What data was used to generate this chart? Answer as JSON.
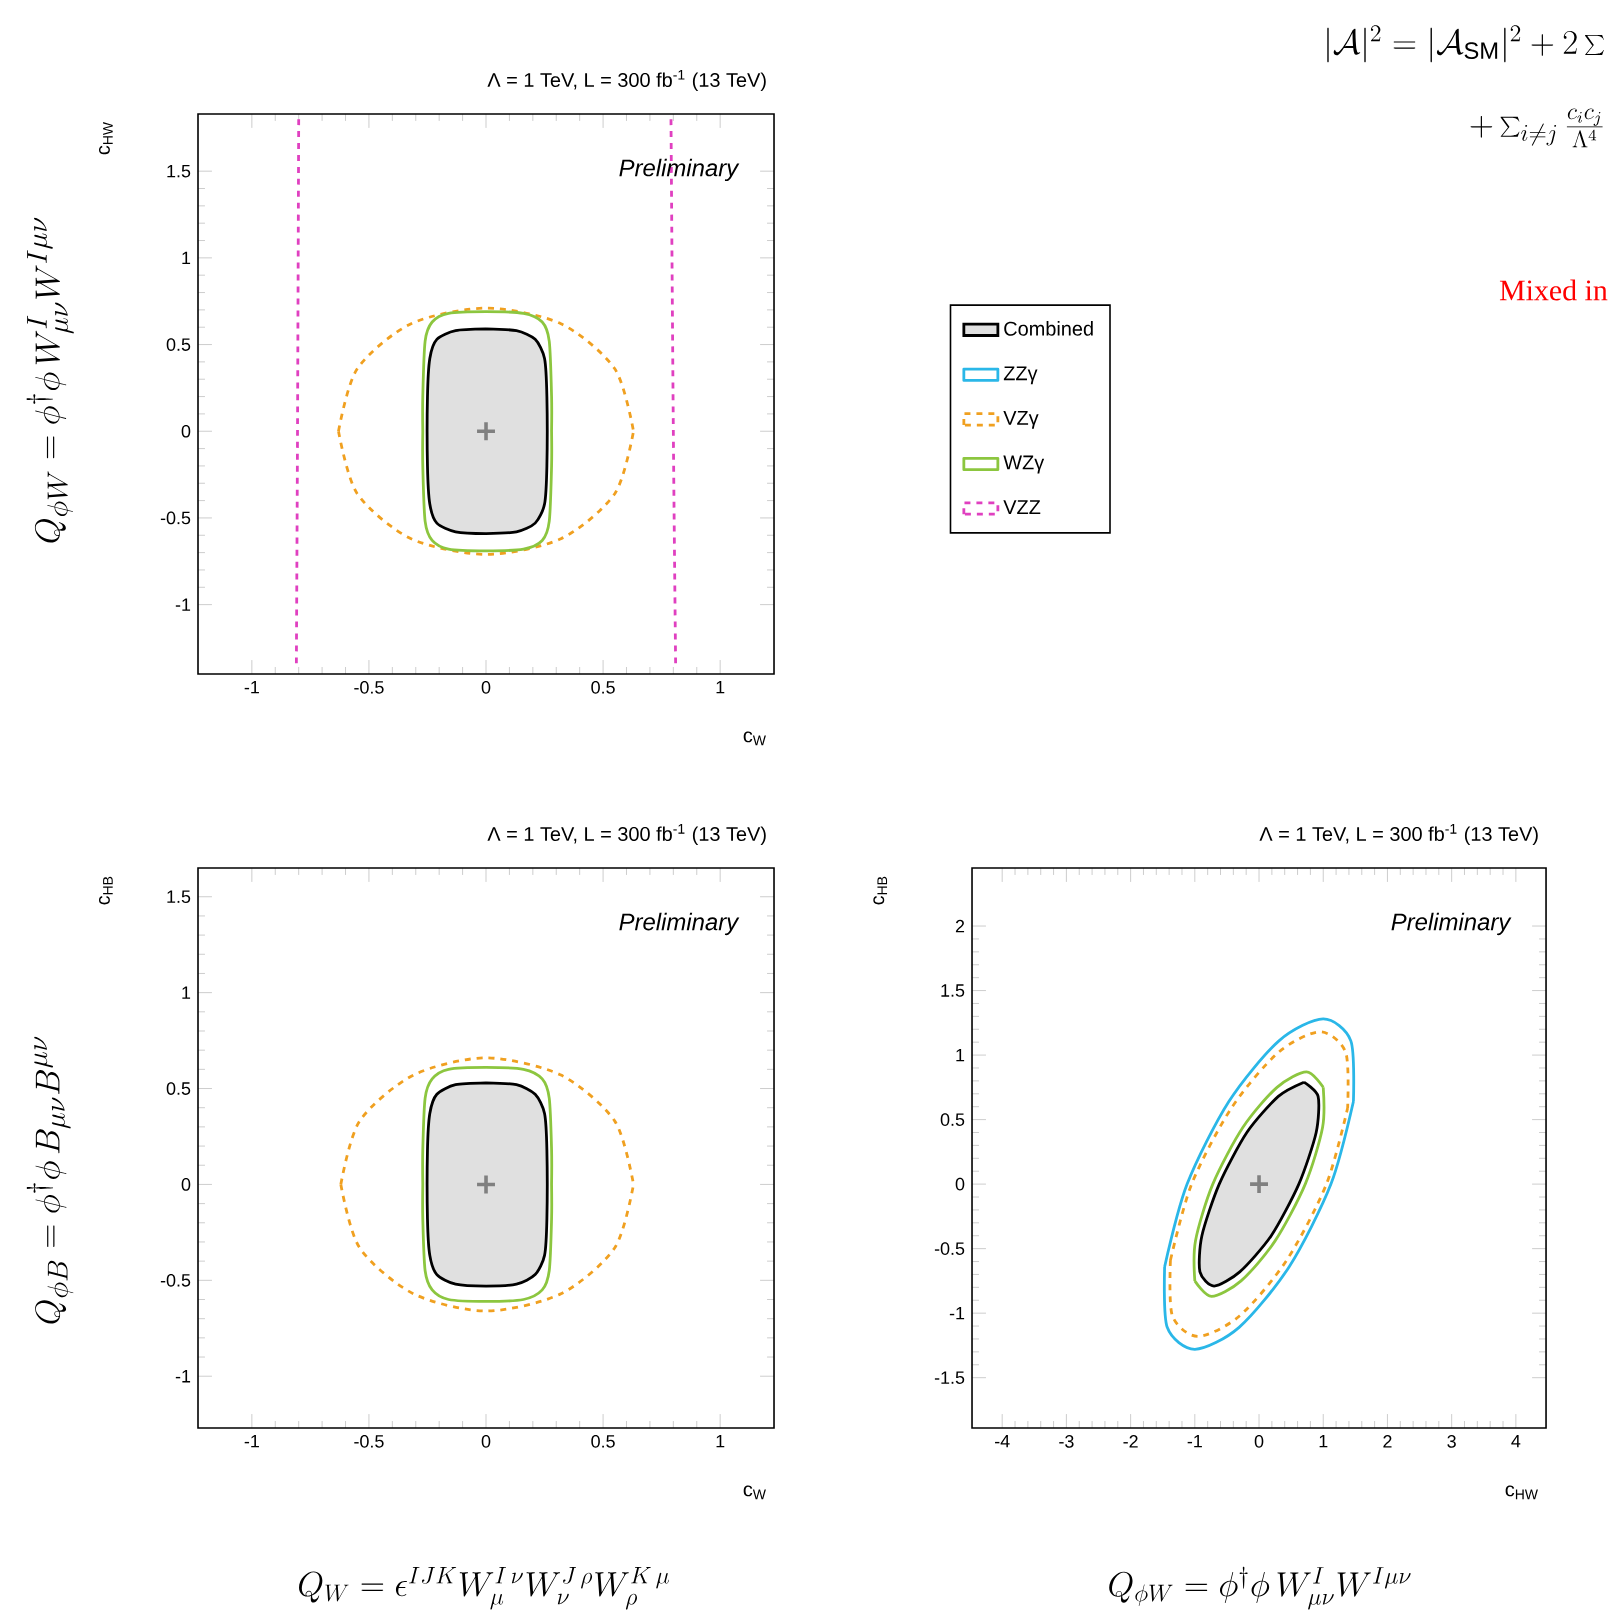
{
  "chart_data": [
    {
      "type": "line",
      "title": "Λ = 1 TeV,  L = 300 fb$^{-1}$  (13 TeV)",
      "xlabel": "c$_{W}$",
      "ylabel": "c$_{HW}$",
      "xlim": [
        -1.23,
        1.23
      ],
      "ylim": [
        -1.4,
        1.83
      ],
      "xticks": [
        -1,
        -0.5,
        0,
        0.5,
        1
      ],
      "yticks": [
        -1,
        -0.5,
        0,
        0.5,
        1,
        1.5
      ],
      "legend": "right",
      "annotations": [
        "Preliminary",
        "Q_{\\phi W} = \\phi^\\dagger \\phi\\, W^I_{\\mu\\nu} W^{I\\mu\\nu}",
        "|\\mathcal{A}|^2 = |\\mathcal{A}_{\\mathrm{SM}}|^2 + 2\\sum",
        "+ \\sum_{i\\neq j} \\frac{c_i c_j}{\\Lambda^4}",
        "Mixed in"
      ],
      "series": [
        {
          "name": "Combined",
          "type": "area",
          "color": "#000000",
          "x": [
            0,
            0.13,
            0.21,
            0.25,
            0.26,
            0.26,
            0.25,
            0.21,
            0.13,
            0,
            -0.13,
            -0.21,
            -0.24,
            -0.25,
            -0.25,
            -0.24,
            -0.21,
            -0.13,
            0
          ],
          "values": [
            0.59,
            0.58,
            0.53,
            0.42,
            0.2,
            -0.2,
            -0.42,
            -0.53,
            -0.58,
            -0.59,
            -0.58,
            -0.53,
            -0.42,
            -0.2,
            0.2,
            0.42,
            0.53,
            0.58,
            0.59
          ]
        },
        {
          "name": "ZZγ",
          "color": "#2ab7e8"
        },
        {
          "name": "VZγ",
          "color": "#f0a020",
          "line_style": "dashed",
          "x": [
            -0.63,
            -0.55,
            -0.32,
            0,
            0.32,
            0.55,
            0.63,
            0,
            -0.63,
            -0.55,
            -0.32,
            0,
            0.32,
            0.55,
            0.63
          ],
          "values": [
            0,
            0.36,
            0.62,
            0.71,
            0.62,
            0.36,
            0,
            null,
            0,
            -0.36,
            -0.62,
            -0.71,
            -0.62,
            -0.36,
            0
          ]
        },
        {
          "name": "WZγ",
          "color": "#8cc63f",
          "x": [
            -0.27,
            -0.27,
            -0.26,
            -0.23,
            -0.16,
            0,
            0.16,
            0.24,
            0.27,
            0.28,
            0.28,
            0,
            -0.27,
            -0.27,
            -0.26,
            -0.23,
            -0.16,
            0,
            0.16,
            0.24,
            0.27,
            0.28,
            0.28
          ],
          "values": [
            0,
            0.2,
            0.52,
            0.63,
            0.68,
            0.69,
            0.68,
            0.63,
            0.52,
            0.2,
            0,
            null,
            0,
            -0.2,
            -0.52,
            -0.63,
            -0.68,
            -0.69,
            -0.68,
            -0.63,
            -0.52,
            -0.2,
            0
          ]
        },
        {
          "name": "VZZ",
          "color": "#e040c0",
          "line_style": "dashed",
          "x": [
            -0.8,
            -0.805,
            -0.81,
            0,
            0.79,
            0.8,
            0.81
          ],
          "values": [
            1.8,
            0,
            -1.37,
            null,
            1.8,
            0,
            -1.37
          ]
        },
        {
          "type": "scatter",
          "marker": "cross",
          "color": "#808080",
          "x": [
            0
          ],
          "values": [
            0
          ]
        }
      ]
    },
    {
      "type": "line",
      "title": "Λ = 1 TeV,  L = 300 fb$^{-1}$  (13 TeV)",
      "xlabel": "c$_{W}$",
      "ylabel": "c$_{HB}$",
      "xlim": [
        -1.23,
        1.23
      ],
      "ylim": [
        -1.27,
        1.65
      ],
      "xticks": [
        -1,
        -0.5,
        0,
        0.5,
        1
      ],
      "yticks": [
        -1,
        -0.5,
        0,
        0.5,
        1,
        1.5
      ],
      "annotations": [
        "Preliminary",
        "Q_{\\phi B} = \\phi^\\dagger \\phi\\, B_{\\mu\\nu} B^{\\mu\\nu}",
        "Q_W = \\epsilon^{IJK} W^{I\\,\\nu}_{\\mu} W^{J\\,\\rho}_{\\nu} W^{K\\,\\mu}_{\\rho}"
      ],
      "series": [
        {
          "type": "area",
          "color": "#000000",
          "x": [
            0,
            0.13,
            0.21,
            0.25,
            0.26,
            0.26,
            0.25,
            0.21,
            0.13,
            0,
            -0.13,
            -0.21,
            -0.24,
            -0.25,
            -0.25,
            -0.24,
            -0.21,
            -0.13,
            0
          ],
          "values": [
            0.53,
            0.52,
            0.47,
            0.37,
            0.18,
            -0.18,
            -0.37,
            -0.47,
            -0.52,
            -0.53,
            -0.52,
            -0.47,
            -0.37,
            -0.18,
            0.18,
            0.37,
            0.47,
            0.52,
            0.53
          ]
        },
        {
          "color": "#f0a020",
          "line_style": "dashed",
          "x": [
            -0.62,
            -0.54,
            -0.31,
            0,
            0.32,
            0.55,
            0.63,
            0,
            -0.62,
            -0.54,
            -0.31,
            0,
            0.32,
            0.55,
            0.63
          ],
          "values": [
            0,
            0.33,
            0.57,
            0.66,
            0.57,
            0.33,
            0,
            null,
            0,
            -0.33,
            -0.57,
            -0.66,
            -0.57,
            -0.33,
            0
          ]
        },
        {
          "color": "#8cc63f",
          "x": [
            -0.27,
            -0.27,
            -0.26,
            -0.23,
            -0.16,
            0,
            0.16,
            0.24,
            0.27,
            0.28,
            0.28,
            0,
            -0.27,
            -0.27,
            -0.26,
            -0.23,
            -0.16,
            0,
            0.16,
            0.24,
            0.27,
            0.28,
            0.28
          ],
          "values": [
            0,
            0.18,
            0.45,
            0.55,
            0.6,
            0.61,
            0.6,
            0.55,
            0.45,
            0.18,
            0,
            null,
            0,
            -0.18,
            -0.45,
            -0.55,
            -0.6,
            -0.61,
            -0.6,
            -0.55,
            -0.45,
            -0.18,
            0
          ]
        },
        {
          "type": "scatter",
          "marker": "cross",
          "color": "#808080",
          "x": [
            0
          ],
          "values": [
            0
          ]
        }
      ]
    },
    {
      "type": "line",
      "title": "Λ = 1 TeV,  L = 300 fb$^{-1}$  (13 TeV)",
      "xlabel": "c$_{HW}$",
      "ylabel": "c$_{HB}$",
      "xlim": [
        -4.47,
        4.47
      ],
      "ylim": [
        -1.89,
        2.45
      ],
      "xticks": [
        -4,
        -3,
        -2,
        -1,
        0,
        1,
        2,
        3,
        4
      ],
      "yticks": [
        -1.5,
        -1,
        -0.5,
        0,
        0.5,
        1,
        1.5,
        2
      ],
      "annotations": [
        "Preliminary",
        "Q_{\\phi W} = \\phi^\\dagger \\phi\\, W^I_{\\mu\\nu} W^{I\\mu\\nu}"
      ],
      "series": [
        {
          "type": "area",
          "color": "#000000",
          "x": [
            0.7,
            0.92,
            0.89,
            0.62,
            0.19,
            -0.3,
            -0.7,
            -0.92,
            -0.89,
            -0.62,
            -0.19,
            0.3,
            0.7
          ],
          "values": [
            0.79,
            0.68,
            0.4,
            0,
            -0.4,
            -0.68,
            -0.79,
            -0.68,
            -0.4,
            0,
            0.4,
            0.68,
            0.79
          ]
        },
        {
          "color": "#2ab7e8",
          "x": [
            -1.47,
            -1.12,
            -0.47,
            0.31,
            1.0,
            1.43,
            1.47,
            0,
            -1.47,
            -1.43,
            -1.0,
            -0.31,
            0.47,
            1.12,
            1.47
          ],
          "values": [
            -0.64,
            0,
            0.64,
            1.11,
            1.28,
            1.11,
            0.64,
            null,
            -0.64,
            -1.11,
            -1.28,
            -1.11,
            -0.64,
            0,
            0.64
          ]
        },
        {
          "color": "#f0a020",
          "line_style": "dashed",
          "x": [
            -1.38,
            -1.05,
            -0.43,
            0.3,
            0.95,
            1.35,
            1.38,
            0,
            -1.38,
            -1.35,
            -0.95,
            -0.3,
            0.43,
            1.05,
            1.38
          ],
          "values": [
            -0.59,
            0,
            0.59,
            1.02,
            1.18,
            1.02,
            0.59,
            null,
            -0.59,
            -1.02,
            -1.18,
            -1.02,
            -0.59,
            0,
            0.59
          ]
        },
        {
          "color": "#8cc63f",
          "x": [
            -1.0,
            -0.99,
            -0.72,
            -0.25,
            0.28,
            0.74,
            1.0,
            0,
            -1.0,
            -0.74,
            -0.28,
            0.25,
            0.72,
            0.99,
            1.0
          ],
          "values": [
            -0.75,
            -0.44,
            0,
            0.44,
            0.75,
            0.87,
            0.75,
            null,
            -0.75,
            -0.87,
            -0.75,
            -0.44,
            0,
            0.44,
            0.75
          ]
        },
        {
          "type": "scatter",
          "marker": "cross",
          "color": "#808080",
          "x": [
            0
          ],
          "values": [
            0
          ]
        }
      ]
    }
  ]
}
